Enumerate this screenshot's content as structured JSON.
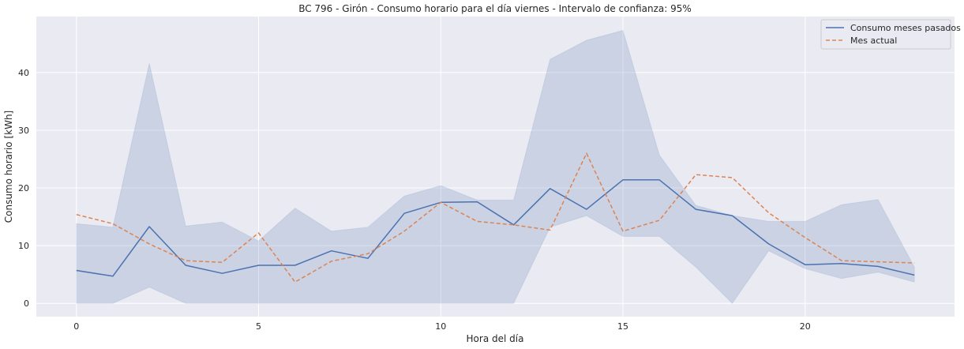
{
  "chart_data": {
    "type": "line",
    "title": "BC 796 - Girón - Consumo horario para el día viernes - Intervalo de confianza: 95%",
    "xlabel": "Hora del día",
    "ylabel": "Consumo horario [kWh]",
    "xlim": [
      -1.1,
      24.1
    ],
    "ylim": [
      -2.3,
      49.7
    ],
    "xticks": [
      0,
      5,
      10,
      15,
      20
    ],
    "yticks": [
      0,
      10,
      20,
      30,
      40
    ],
    "grid": true,
    "legend_position": "top-right",
    "x": [
      0,
      1,
      2,
      3,
      4,
      5,
      6,
      7,
      8,
      9,
      10,
      11,
      12,
      13,
      14,
      15,
      16,
      17,
      18,
      19,
      20,
      21,
      22,
      23
    ],
    "series": [
      {
        "name": "Consumo meses pasados",
        "style": "solid",
        "color": "#4c72b0",
        "values": [
          5.7,
          4.7,
          13.3,
          6.6,
          5.2,
          6.6,
          6.6,
          9.1,
          7.8,
          15.6,
          17.5,
          17.6,
          13.6,
          19.9,
          16.3,
          21.4,
          21.4,
          16.3,
          15.2,
          10.3,
          6.7,
          6.9,
          6.4,
          4.9
        ]
      },
      {
        "name": "Mes actual",
        "style": "dashed",
        "color": "#dd8452",
        "values": [
          15.4,
          13.8,
          10.3,
          7.4,
          7.1,
          12.2,
          3.7,
          7.3,
          8.6,
          12.5,
          17.5,
          14.2,
          13.6,
          12.7,
          26.0,
          12.5,
          14.4,
          22.3,
          21.8,
          15.7,
          11.4,
          7.4,
          7.2,
          7.0
        ]
      }
    ],
    "confidence_band": {
      "series": "Consumo meses pasados",
      "color": "#4c72b0",
      "lower": [
        0,
        0,
        2.8,
        0,
        0,
        0,
        0,
        0,
        0,
        0,
        0,
        0,
        0,
        13.2,
        15.2,
        11.6,
        11.6,
        6.3,
        0,
        9.1,
        6.0,
        4.3,
        5.4,
        3.7
      ],
      "upper": [
        13.8,
        13.2,
        41.6,
        13.4,
        14.1,
        10.8,
        16.5,
        12.5,
        13.2,
        18.6,
        20.4,
        17.9,
        17.9,
        42.3,
        45.6,
        47.3,
        25.7,
        17.0,
        15.2,
        14.2,
        14.2,
        17.1,
        18.0,
        6.3
      ]
    }
  }
}
